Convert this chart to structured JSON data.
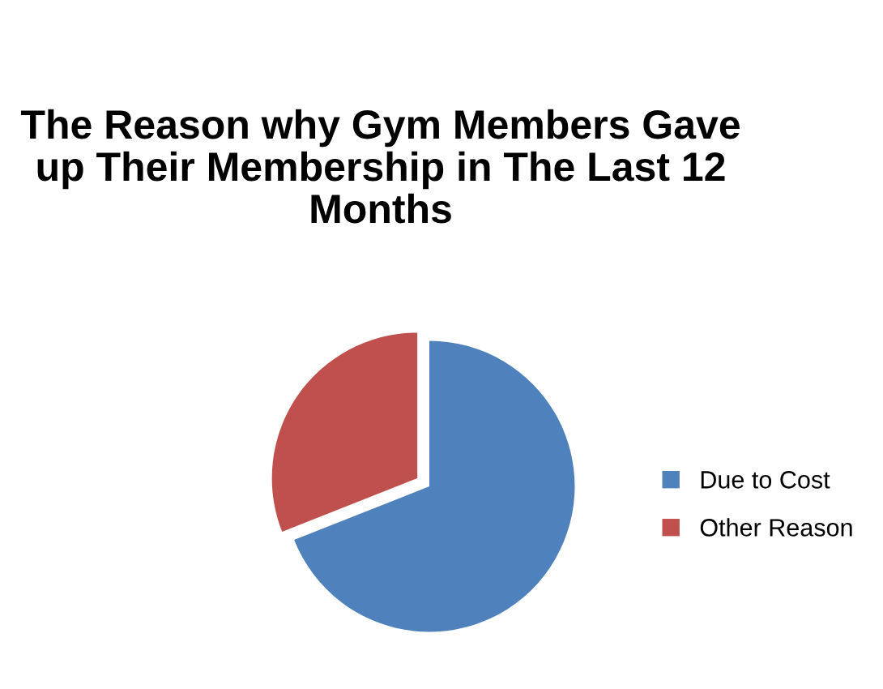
{
  "chart_data": {
    "type": "pie",
    "title": "The Reason why Gym Members Gave up Their Membership in The Last 12 Months",
    "categories": [
      "Due to Cost",
      "Other Reason"
    ],
    "values": [
      69,
      31
    ],
    "colors": [
      "#4f81bd",
      "#c0504d"
    ],
    "legend": "right"
  }
}
